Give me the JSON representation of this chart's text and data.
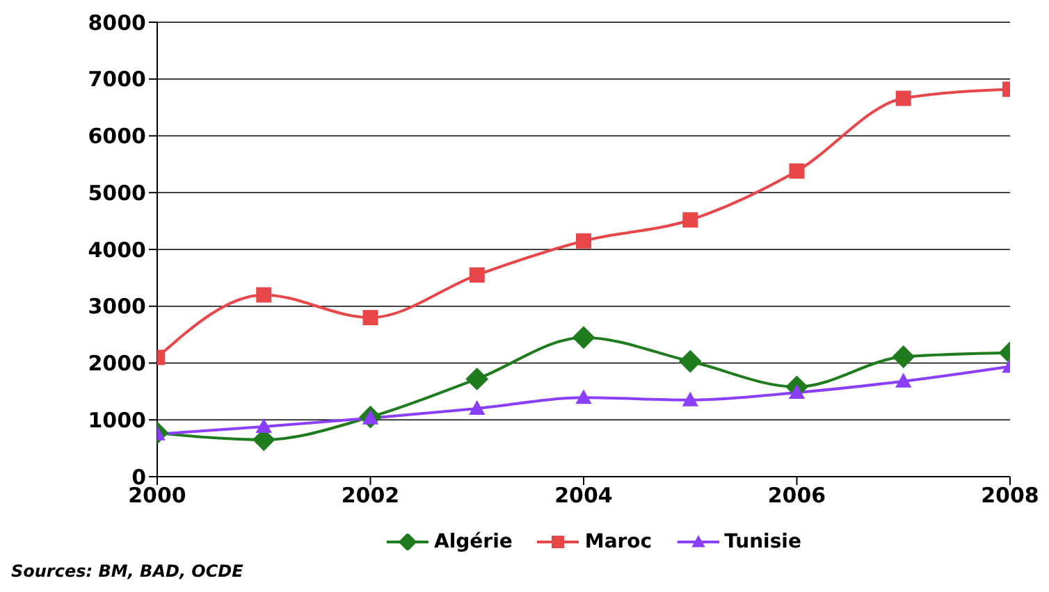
{
  "chart_data": {
    "type": "line",
    "x": [
      2000,
      2001,
      2002,
      2003,
      2004,
      2005,
      2006,
      2007,
      2008
    ],
    "series": [
      {
        "name": "Algérie",
        "color": "#1e7b1e",
        "marker": "diamond",
        "values": [
          770,
          650,
          1050,
          1720,
          2450,
          2030,
          1580,
          2110,
          2180
        ]
      },
      {
        "name": "Maroc",
        "color": "#e8474a",
        "marker": "square",
        "values": [
          2100,
          3200,
          2800,
          3550,
          4150,
          4520,
          5380,
          6660,
          6820
        ]
      },
      {
        "name": "Tunisie",
        "color": "#8a3ffc",
        "marker": "triangle",
        "values": [
          750,
          880,
          1030,
          1200,
          1390,
          1350,
          1480,
          1680,
          1940
        ]
      }
    ],
    "xlim": [
      2000,
      2008
    ],
    "xticks": [
      2000,
      2002,
      2004,
      2006,
      2008
    ],
    "ylim": [
      0,
      8000
    ],
    "yticks": [
      0,
      1000,
      2000,
      3000,
      4000,
      5000,
      6000,
      7000,
      8000
    ],
    "grid": "y",
    "legend": "bottom",
    "line_style": "solid",
    "annotations": [
      "Sources:  BM, BAD, OCDE"
    ]
  }
}
